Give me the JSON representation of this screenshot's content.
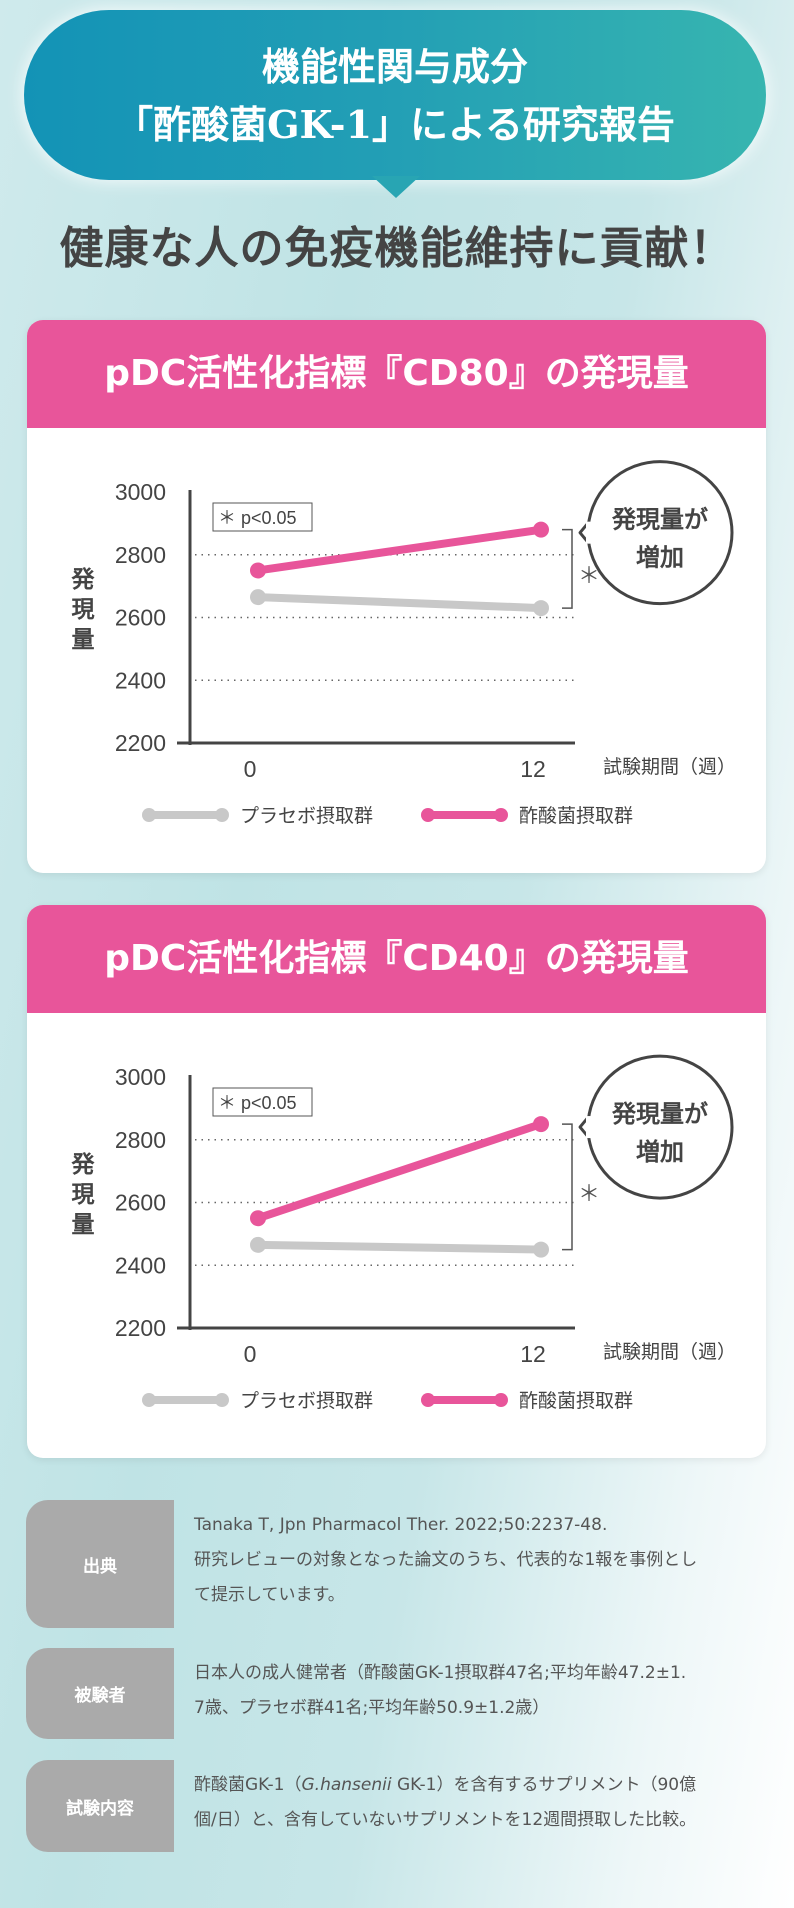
{
  "banner": {
    "line1": "機能性関与成分",
    "line2": "「酢酸菌GK-1」による研究報告"
  },
  "headline": "健康な人の免疫機能維持に貢献！",
  "colors": {
    "accent": "#e8559a",
    "placebo": "#c8c8c8",
    "teal": "#239fb5"
  },
  "chart_data": [
    {
      "type": "line",
      "title": "pDC活性化指標『CD80』の発現量",
      "ylabel": "発現量",
      "xlabel": "試験期間（週）",
      "x": [
        0,
        12
      ],
      "x_ticks": [
        "0",
        "12"
      ],
      "ylim": [
        2200,
        3000
      ],
      "y_ticks": [
        "3000",
        "2800",
        "2600",
        "2400",
        "2200"
      ],
      "grid": "dotted",
      "series": [
        {
          "name": "プラセボ摂取群",
          "values": [
            2665,
            2630
          ]
        },
        {
          "name": "酢酸菌摂取群",
          "values": [
            2750,
            2880
          ]
        }
      ],
      "annotations": {
        "pvalue": "＊ p<0.05",
        "significance": "＊",
        "callout_line1": "発現量が",
        "callout_line2": "増加"
      },
      "legend": "bottom"
    },
    {
      "type": "line",
      "title": "pDC活性化指標『CD40』の発現量",
      "ylabel": "発現量",
      "xlabel": "試験期間（週）",
      "x": [
        0,
        12
      ],
      "x_ticks": [
        "0",
        "12"
      ],
      "ylim": [
        2200,
        3000
      ],
      "y_ticks": [
        "3000",
        "2800",
        "2600",
        "2400",
        "2200"
      ],
      "grid": "dotted",
      "series": [
        {
          "name": "プラセボ摂取群",
          "values": [
            2465,
            2450
          ]
        },
        {
          "name": "酢酸菌摂取群",
          "values": [
            2550,
            2850
          ]
        }
      ],
      "annotations": {
        "pvalue": "＊ p<0.05",
        "significance": "＊",
        "callout_line1": "発現量が",
        "callout_line2": "増加"
      },
      "legend": "bottom"
    }
  ],
  "info": [
    {
      "label": "出典",
      "lines": [
        "Tanaka T, Jpn Pharmacol Ther. 2022;50:2237-48.",
        "研究レビューの対象となった論文のうち、代表的な1報を事例とし",
        "て提示しています。"
      ]
    },
    {
      "label": "被験者",
      "lines": [
        "日本人の成人健常者（酢酸菌GK-1摂取群47名;平均年齢47.2±1.",
        "7歳、プラセボ群41名;平均年齢50.9±1.2歳）"
      ]
    },
    {
      "label": "試験内容",
      "lines": [
        "酢酸菌GK-1（G.hansenii GK-1）を含有するサプリメント（90億",
        "個/日）と、含有していないサプリメントを12週間摂取した比較。"
      ]
    }
  ]
}
